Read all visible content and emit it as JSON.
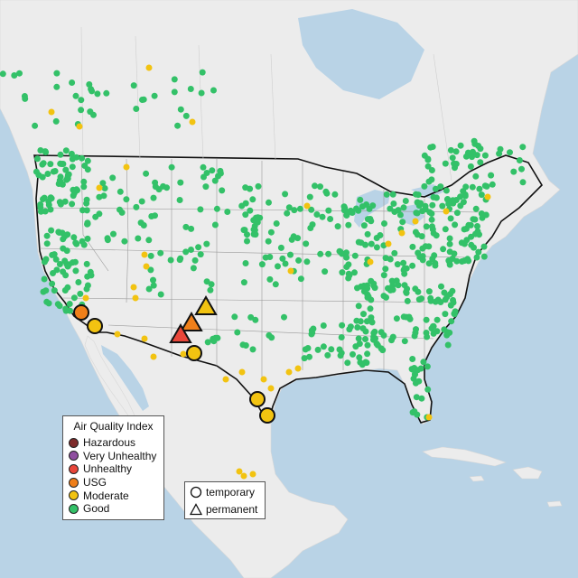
{
  "legend": {
    "title": "Air Quality Index",
    "categories": [
      {
        "label": "Hazardous",
        "color": "#7e2b2b"
      },
      {
        "label": "Very Unhealthy",
        "color": "#8f4fa0"
      },
      {
        "label": "Unhealthy",
        "color": "#e8463a"
      },
      {
        "label": "USG",
        "color": "#ef7f1a"
      },
      {
        "label": "Moderate",
        "color": "#f2c311"
      },
      {
        "label": "Good",
        "color": "#33c168"
      }
    ]
  },
  "shape_legend": {
    "items": [
      {
        "label": "temporary",
        "shape": "circle-icon"
      },
      {
        "label": "permanent",
        "shape": "triangle-icon"
      }
    ]
  },
  "colors": {
    "water": "#b9d3e6",
    "land": "#ececec",
    "good": "#33c168",
    "moderate": "#f2c311",
    "usg": "#ef7f1a",
    "unhealthy": "#e8463a"
  }
}
